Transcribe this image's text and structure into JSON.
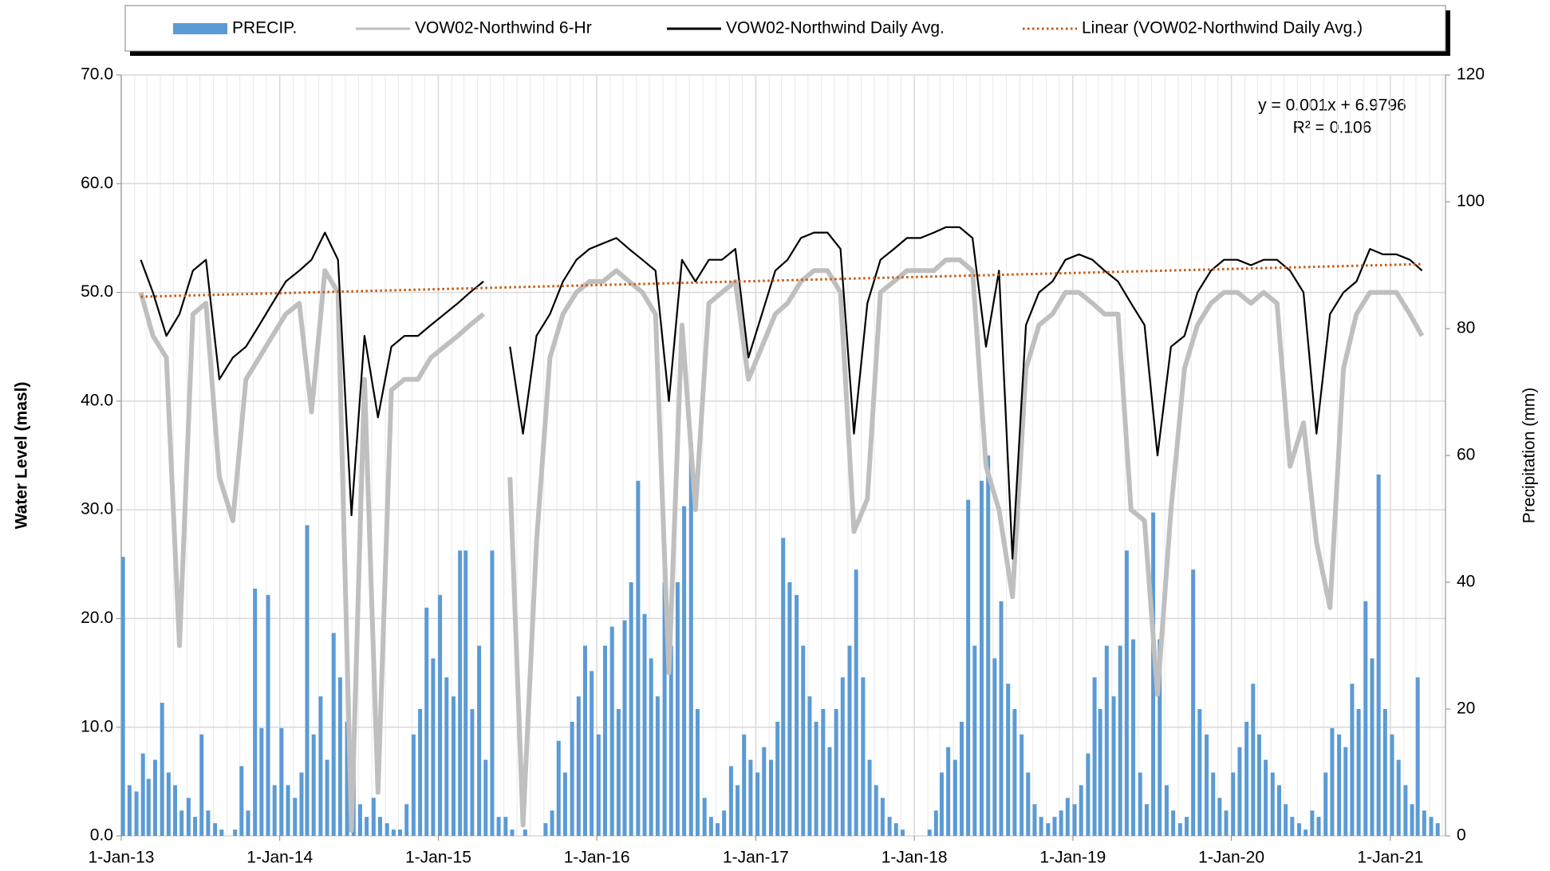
{
  "chart_data": {
    "type": "combo",
    "y_axis_label": "Water Level (masl)",
    "y2_axis_label": "Precipitation (mm)",
    "annotations": [
      "y = 0.001x + 6.9796",
      "R² = 0.106"
    ],
    "xlim": [
      "2013-01-01",
      "2021-05-08"
    ],
    "xticks": [
      {
        "value": "2013-01-01",
        "label": "1-Jan-13"
      },
      {
        "value": "2014-01-01",
        "label": "1-Jan-14"
      },
      {
        "value": "2015-01-01",
        "label": "1-Jan-15"
      },
      {
        "value": "2016-01-01",
        "label": "1-Jan-16"
      },
      {
        "value": "2017-01-01",
        "label": "1-Jan-17"
      },
      {
        "value": "2018-01-01",
        "label": "1-Jan-18"
      },
      {
        "value": "2019-01-01",
        "label": "1-Jan-19"
      },
      {
        "value": "2020-01-01",
        "label": "1-Jan-20"
      },
      {
        "value": "2021-01-01",
        "label": "1-Jan-21"
      }
    ],
    "ylim": [
      0,
      70
    ],
    "yticks": [
      {
        "value": 0,
        "label": "0.0"
      },
      {
        "value": 10,
        "label": "10.0"
      },
      {
        "value": 20,
        "label": "20.0"
      },
      {
        "value": 30,
        "label": "30.0"
      },
      {
        "value": 40,
        "label": "40.0"
      },
      {
        "value": 50,
        "label": "50.0"
      },
      {
        "value": 60,
        "label": "60.0"
      },
      {
        "value": 70,
        "label": "70.0"
      }
    ],
    "y2lim": [
      0,
      120
    ],
    "y2ticks": [
      0,
      20,
      40,
      60,
      80,
      100,
      120
    ],
    "grid": true,
    "legend": "top",
    "x": [
      "2013-02-15",
      "2013-03-15",
      "2013-04-15",
      "2013-05-15",
      "2013-06-15",
      "2013-07-15",
      "2013-08-15",
      "2013-09-15",
      "2013-10-15",
      "2013-11-15",
      "2013-12-15",
      "2014-01-15",
      "2014-02-15",
      "2014-03-15",
      "2014-04-15",
      "2014-05-15",
      "2014-06-15",
      "2014-07-15",
      "2014-08-15",
      "2014-09-15",
      "2014-10-15",
      "2014-11-15",
      "2014-12-15",
      "2015-01-15",
      "2015-02-15",
      "2015-03-15",
      "2015-04-15",
      "2015-05-15",
      "2015-06-15",
      "2015-07-15",
      "2015-08-15",
      "2015-09-15",
      "2015-10-15",
      "2015-11-15",
      "2015-12-15",
      "2016-01-15",
      "2016-02-15",
      "2016-03-15",
      "2016-04-15",
      "2016-05-15",
      "2016-06-15",
      "2016-07-15",
      "2016-08-15",
      "2016-09-15",
      "2016-10-15",
      "2016-11-15",
      "2016-12-15",
      "2017-01-15",
      "2017-02-15",
      "2017-03-15",
      "2017-04-15",
      "2017-05-15",
      "2017-06-15",
      "2017-07-15",
      "2017-08-15",
      "2017-09-15",
      "2017-10-15",
      "2017-11-15",
      "2017-12-15",
      "2018-01-15",
      "2018-02-15",
      "2018-03-15",
      "2018-04-15",
      "2018-05-15",
      "2018-06-15",
      "2018-07-15",
      "2018-08-15",
      "2018-09-15",
      "2018-10-15",
      "2018-11-15",
      "2018-12-15",
      "2019-01-15",
      "2019-02-15",
      "2019-03-15",
      "2019-04-15",
      "2019-05-15",
      "2019-06-15",
      "2019-07-15",
      "2019-08-15",
      "2019-09-15",
      "2019-10-15",
      "2019-11-15",
      "2019-12-15",
      "2020-01-15",
      "2020-02-15",
      "2020-03-15",
      "2020-04-15",
      "2020-05-15",
      "2020-06-15",
      "2020-07-15",
      "2020-08-15",
      "2020-09-15",
      "2020-10-15",
      "2020-11-15",
      "2020-12-15",
      "2021-01-15",
      "2021-02-15",
      "2021-03-15"
    ],
    "series": [
      {
        "name": "PRECIP.",
        "type": "bar",
        "axis": "y2",
        "color": "#5b9bd5",
        "x": [
          "2013-01-05",
          "2013-01-20",
          "2013-02-05",
          "2013-02-20",
          "2013-03-05",
          "2013-03-20",
          "2013-04-05",
          "2013-04-20",
          "2013-05-05",
          "2013-05-20",
          "2013-06-05",
          "2013-06-20",
          "2013-07-05",
          "2013-07-20",
          "2013-08-05",
          "2013-08-20",
          "2013-09-05",
          "2013-09-20",
          "2013-10-05",
          "2013-10-20",
          "2013-11-05",
          "2013-11-20",
          "2013-12-05",
          "2013-12-20",
          "2014-01-05",
          "2014-01-20",
          "2014-02-05",
          "2014-02-20",
          "2014-03-05",
          "2014-03-20",
          "2014-04-05",
          "2014-04-20",
          "2014-05-05",
          "2014-05-20",
          "2014-06-05",
          "2014-06-20",
          "2014-07-05",
          "2014-07-20",
          "2014-08-05",
          "2014-08-20",
          "2014-09-05",
          "2014-09-20",
          "2014-10-05",
          "2014-10-20",
          "2014-11-05",
          "2014-11-20",
          "2014-12-05",
          "2014-12-20",
          "2015-01-05",
          "2015-01-20",
          "2015-02-05",
          "2015-02-20",
          "2015-03-05",
          "2015-03-20",
          "2015-04-05",
          "2015-04-20",
          "2015-05-05",
          "2015-05-20",
          "2015-06-05",
          "2015-06-20",
          "2015-07-05",
          "2015-07-20",
          "2015-08-05",
          "2015-08-20",
          "2015-09-05",
          "2015-09-20",
          "2015-10-05",
          "2015-10-20",
          "2015-11-05",
          "2015-11-20",
          "2015-12-05",
          "2015-12-20",
          "2016-01-05",
          "2016-01-20",
          "2016-02-05",
          "2016-02-20",
          "2016-03-05",
          "2016-03-20",
          "2016-04-05",
          "2016-04-20",
          "2016-05-05",
          "2016-05-20",
          "2016-06-05",
          "2016-06-20",
          "2016-07-05",
          "2016-07-20",
          "2016-08-05",
          "2016-08-20",
          "2016-09-05",
          "2016-09-20",
          "2016-10-05",
          "2016-10-20",
          "2016-11-05",
          "2016-11-20",
          "2016-12-05",
          "2016-12-20",
          "2017-01-05",
          "2017-01-20",
          "2017-02-05",
          "2017-02-20",
          "2017-03-05",
          "2017-03-20",
          "2017-04-05",
          "2017-04-20",
          "2017-05-05",
          "2017-05-20",
          "2017-06-05",
          "2017-06-20",
          "2017-07-05",
          "2017-07-20",
          "2017-08-05",
          "2017-08-20",
          "2017-09-05",
          "2017-09-20",
          "2017-10-05",
          "2017-10-20",
          "2017-11-05",
          "2017-11-20",
          "2017-12-05",
          "2017-12-20",
          "2018-01-05",
          "2018-01-20",
          "2018-02-05",
          "2018-02-20",
          "2018-03-05",
          "2018-03-20",
          "2018-04-05",
          "2018-04-20",
          "2018-05-05",
          "2018-05-20",
          "2018-06-05",
          "2018-06-20",
          "2018-07-05",
          "2018-07-20",
          "2018-08-05",
          "2018-08-20",
          "2018-09-05",
          "2018-09-20",
          "2018-10-05",
          "2018-10-20",
          "2018-11-05",
          "2018-11-20",
          "2018-12-05",
          "2018-12-20",
          "2019-01-05",
          "2019-01-20",
          "2019-02-05",
          "2019-02-20",
          "2019-03-05",
          "2019-03-20",
          "2019-04-05",
          "2019-04-20",
          "2019-05-05",
          "2019-05-20",
          "2019-06-05",
          "2019-06-20",
          "2019-07-05",
          "2019-07-20",
          "2019-08-05",
          "2019-08-20",
          "2019-09-05",
          "2019-09-20",
          "2019-10-05",
          "2019-10-20",
          "2019-11-05",
          "2019-11-20",
          "2019-12-05",
          "2019-12-20",
          "2020-01-05",
          "2020-01-20",
          "2020-02-05",
          "2020-02-20",
          "2020-03-05",
          "2020-03-20",
          "2020-04-05",
          "2020-04-20",
          "2020-05-05",
          "2020-05-20",
          "2020-06-05",
          "2020-06-20",
          "2020-07-05",
          "2020-07-20",
          "2020-08-05",
          "2020-08-20",
          "2020-09-05",
          "2020-09-20",
          "2020-10-05",
          "2020-10-20",
          "2020-11-05",
          "2020-11-20",
          "2020-12-05",
          "2020-12-20",
          "2021-01-05",
          "2021-01-20",
          "2021-02-05",
          "2021-02-20",
          "2021-03-05",
          "2021-03-20",
          "2021-04-05",
          "2021-04-20"
        ],
        "values": [
          44,
          8,
          7,
          13,
          9,
          12,
          21,
          10,
          8,
          4,
          6,
          3,
          16,
          4,
          2,
          1,
          0,
          1,
          11,
          4,
          39,
          17,
          38,
          8,
          17,
          8,
          6,
          10,
          49,
          16,
          22,
          12,
          32,
          25,
          18,
          12,
          5,
          3,
          6,
          3,
          2,
          1,
          1,
          5,
          16,
          20,
          36,
          28,
          38,
          25,
          22,
          45,
          45,
          20,
          30,
          12,
          45,
          3,
          3,
          1,
          0,
          1,
          0,
          0,
          2,
          4,
          15,
          10,
          18,
          22,
          30,
          26,
          16,
          30,
          33,
          20,
          34,
          40,
          56,
          35,
          28,
          22,
          40,
          30,
          40,
          52,
          62,
          20,
          6,
          3,
          2,
          4,
          11,
          8,
          16,
          12,
          10,
          14,
          12,
          18,
          47,
          40,
          38,
          30,
          22,
          18,
          20,
          14,
          20,
          25,
          30,
          42,
          25,
          12,
          8,
          6,
          3,
          2,
          1,
          0,
          0,
          0,
          1,
          4,
          10,
          14,
          12,
          18,
          53,
          30,
          56,
          60,
          28,
          37,
          24,
          20,
          16,
          10,
          5,
          3,
          2,
          3,
          4,
          6,
          5,
          8,
          13,
          25,
          20,
          30,
          22,
          30,
          45,
          31,
          10,
          5,
          51,
          31,
          8,
          4,
          2,
          3,
          42,
          20,
          16,
          10,
          6,
          4,
          10,
          14,
          18,
          24,
          16,
          12,
          10,
          8,
          5,
          3,
          2,
          1,
          4,
          3,
          10,
          17,
          16,
          14,
          24,
          20,
          37,
          28,
          57,
          20,
          16,
          12,
          8,
          5,
          25,
          4,
          3,
          2
        ]
      },
      {
        "name": "VOW02-Northwind 6-Hr",
        "type": "line",
        "color": "#bfbfbf",
        "values": [
          50,
          46,
          44,
          17.5,
          48,
          49,
          33,
          29,
          42,
          44,
          46,
          48,
          49,
          39,
          52,
          50,
          0.5,
          42,
          4,
          41,
          42,
          42,
          44,
          45,
          46,
          47,
          48,
          null,
          33,
          1,
          27,
          44,
          48,
          50,
          51,
          51,
          52,
          51,
          50,
          48,
          15,
          47,
          30,
          49,
          50,
          51,
          42,
          45,
          48,
          49,
          51,
          52,
          52,
          50,
          28,
          31,
          50,
          51,
          52,
          52,
          52,
          53,
          53,
          52,
          34,
          30,
          22,
          43,
          47,
          48,
          50,
          50,
          49,
          48,
          48,
          30,
          29,
          13,
          30,
          43,
          47,
          49,
          50,
          50,
          49,
          50,
          49,
          34,
          38,
          27,
          21,
          43,
          48,
          50,
          50,
          50,
          48,
          46
        ]
      },
      {
        "name": "VOW02-Northwind Daily Avg.",
        "type": "line",
        "color": "#000000",
        "values": [
          53,
          50,
          46,
          48,
          52,
          53,
          42,
          44,
          45,
          47,
          49,
          51,
          52,
          53,
          55.5,
          53,
          29.5,
          46,
          38.5,
          45,
          46,
          46,
          47,
          48,
          49,
          50,
          51,
          null,
          45,
          37,
          46,
          48,
          51,
          53,
          54,
          54.5,
          55,
          54,
          53,
          52,
          40,
          53,
          51,
          53,
          53,
          54,
          44,
          48,
          52,
          53,
          55,
          55.5,
          55.5,
          54,
          37,
          49,
          53,
          54,
          55,
          55,
          55.5,
          56,
          56,
          55,
          45,
          52,
          25.5,
          47,
          50,
          51,
          53,
          53.5,
          53,
          52,
          51,
          49,
          47,
          35,
          45,
          46,
          50,
          52,
          53,
          53,
          52.5,
          53,
          53,
          52,
          50,
          37,
          48,
          50,
          51,
          54,
          53.5,
          53.5,
          53,
          52
        ]
      },
      {
        "name": "Linear (VOW02-Northwind Daily Avg.)",
        "type": "trend",
        "color": "#c55a11",
        "x": [
          "2013-02-15",
          "2021-03-15"
        ],
        "values": [
          49.6,
          52.6
        ]
      }
    ]
  }
}
